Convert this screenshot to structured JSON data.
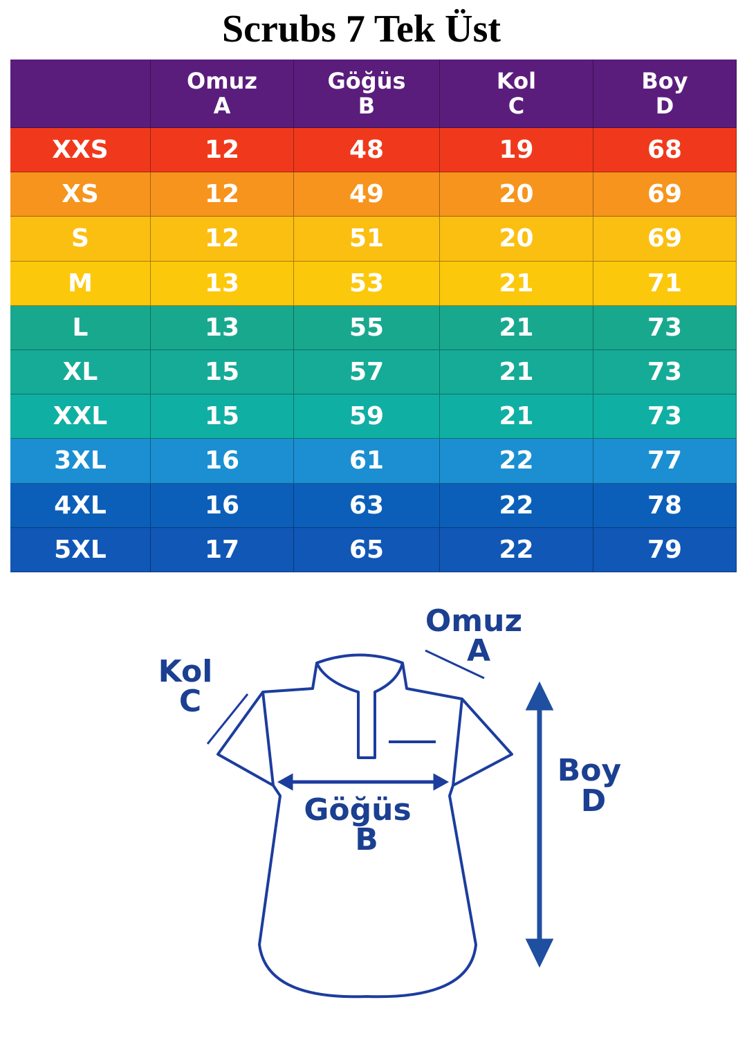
{
  "title": "Scrubs 7 Tek Üst",
  "table": {
    "header": [
      [
        "Omuz",
        "A"
      ],
      [
        "Göğüs",
        "B"
      ],
      [
        "Kol",
        "C"
      ],
      [
        "Boy",
        "D"
      ]
    ],
    "rows": [
      [
        "XXS",
        12,
        48,
        19,
        68
      ],
      [
        "XS",
        12,
        49,
        20,
        69
      ],
      [
        "S",
        12,
        51,
        20,
        69
      ],
      [
        "M",
        13,
        53,
        21,
        71
      ],
      [
        "L",
        13,
        55,
        21,
        73
      ],
      [
        "XL",
        15,
        57,
        21,
        73
      ],
      [
        "XXL",
        15,
        59,
        21,
        73
      ],
      [
        "3XL",
        16,
        61,
        22,
        77
      ],
      [
        "4XL",
        16,
        63,
        22,
        78
      ],
      [
        "5XL",
        17,
        65,
        22,
        79
      ]
    ]
  },
  "diagram": {
    "omuz": [
      "Omuz",
      "A"
    ],
    "kol": [
      "Kol",
      "C"
    ],
    "gogus": [
      "Göğüs",
      "B"
    ],
    "boy": [
      "Boy",
      "D"
    ]
  }
}
